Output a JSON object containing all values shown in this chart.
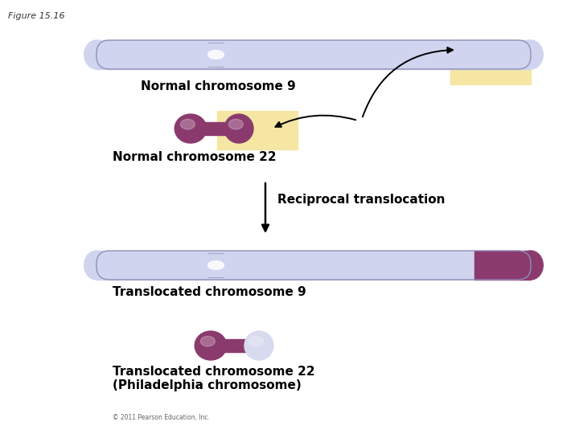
{
  "title": "Figure 15.16",
  "background_color": "#ffffff",
  "chr9_color_light": "#d0d4ee",
  "chr9_color_dark": "#b8bcd8",
  "chr9_grad_left": "#e8eaf5",
  "chr22_color": "#8b3a6e",
  "chr22_dark": "#6b2050",
  "highlight_color": "#f5e6a3",
  "label_normal9": "Normal chromosome 9",
  "label_normal22": "Normal chromosome 22",
  "label_reciprocal": "Reciprocal translocation",
  "label_trans9": "Translocated chromosome 9",
  "label_trans22": "Translocated chromosome 22\n(Philadelphia chromosome)",
  "copyright": "© 2011 Pearson Education, Inc.",
  "label_fontsize": 11,
  "title_fontsize": 8,
  "fig_width": 7.2,
  "fig_height": 5.4,
  "dpi": 100
}
